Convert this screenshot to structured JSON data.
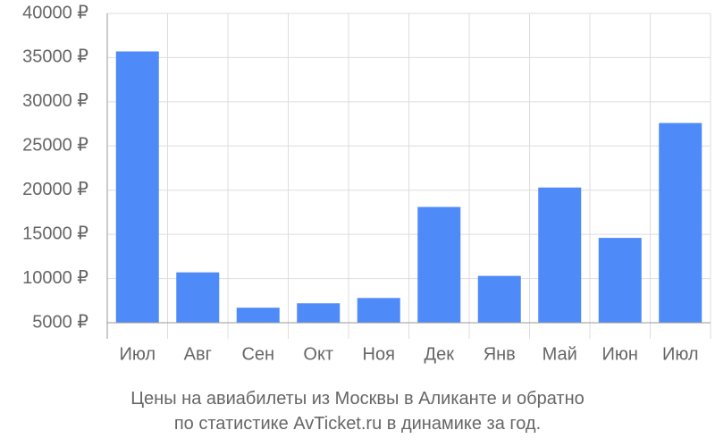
{
  "chart_data": {
    "type": "bar",
    "categories": [
      "Июл",
      "Авг",
      "Сен",
      "Окт",
      "Ноя",
      "Дек",
      "Янв",
      "Май",
      "Июн",
      "Июл"
    ],
    "values": [
      35700,
      10700,
      6700,
      7200,
      7800,
      18100,
      10300,
      20300,
      14600,
      27600
    ],
    "ylim": [
      5000,
      40000
    ],
    "yticks": [
      5000,
      10000,
      15000,
      20000,
      25000,
      30000,
      35000,
      40000
    ],
    "ytick_labels": [
      "5000 ₽",
      "10000 ₽",
      "15000 ₽",
      "20000 ₽",
      "25000 ₽",
      "30000 ₽",
      "35000 ₽",
      "40000 ₽"
    ],
    "grid": true,
    "bar_color": "#4e8af8",
    "grid_color": "#dddddd",
    "axis_color": "#999999",
    "text_color": "#666666"
  },
  "caption": {
    "line1": "Цены на авиабилеты из Москвы в Аликанте и обратно",
    "line2": "по статистике AvTicket.ru в динамике за год."
  }
}
